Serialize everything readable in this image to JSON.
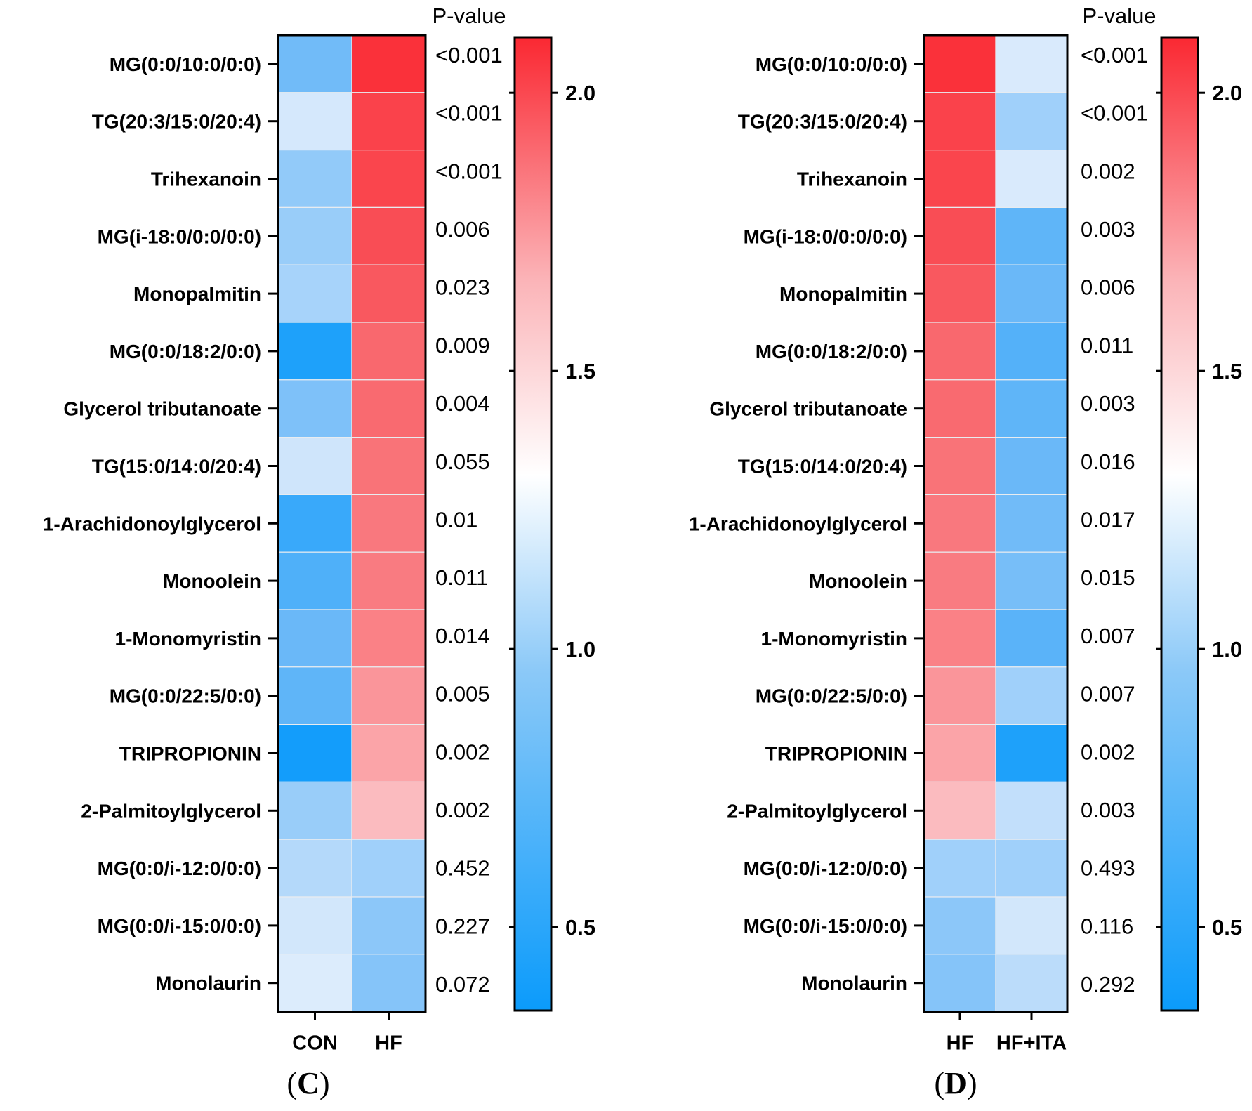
{
  "chart_data": [
    {
      "type": "heatmap",
      "panel_label": "C",
      "columns": [
        "CON",
        "HF"
      ],
      "rows": [
        "MG(0:0/10:0/0:0)",
        "TG(20:3/15:0/20:4)",
        "Trihexanoin",
        "MG(i-18:0/0:0/0:0)",
        "Monopalmitin",
        "MG(0:0/18:2/0:0)",
        "Glycerol tributanoate",
        "TG(15:0/14:0/20:4)",
        "1-Arachidonoylglycerol",
        "Monoolein",
        "1-Monomyristin",
        "MG(0:0/22:5/0:0)",
        "TRIPROPIONIN",
        "2-Palmitoylglycerol",
        "MG(0:0/i-12:0/0:0)",
        "MG(0:0/i-15:0/0:0)",
        "Monolaurin"
      ],
      "values": [
        [
          0.72,
          2.06
        ],
        [
          1.04,
          1.98
        ],
        [
          0.82,
          1.97
        ],
        [
          0.84,
          1.93
        ],
        [
          0.88,
          1.88
        ],
        [
          0.42,
          1.81
        ],
        [
          0.76,
          1.8
        ],
        [
          1.0,
          1.77
        ],
        [
          0.52,
          1.75
        ],
        [
          0.6,
          1.74
        ],
        [
          0.7,
          1.72
        ],
        [
          0.66,
          1.65
        ],
        [
          0.38,
          1.6
        ],
        [
          0.84,
          1.52
        ],
        [
          0.92,
          0.86
        ],
        [
          1.02,
          0.8
        ],
        [
          1.08,
          0.78
        ]
      ],
      "p_value_title": "P-value",
      "p_values": [
        "<0.001",
        "<0.001",
        "<0.001",
        "0.006",
        "0.023",
        "0.009",
        "0.004",
        "0.055",
        "0.01",
        "0.011",
        "0.014",
        "0.005",
        "0.002",
        "0.002",
        "0.452",
        "0.227",
        "0.072"
      ],
      "colorbar": {
        "min": 0.35,
        "max": 2.1,
        "ticks": [
          0.5,
          1.0,
          1.5,
          2.0
        ],
        "tick_labels": [
          "0.5",
          "1.0",
          "1.5",
          "2.0"
        ]
      }
    },
    {
      "type": "heatmap",
      "panel_label": "D",
      "columns": [
        "HF",
        "HF+ITA"
      ],
      "rows": [
        "MG(0:0/10:0/0:0)",
        "TG(20:3/15:0/20:4)",
        "Trihexanoin",
        "MG(i-18:0/0:0/0:0)",
        "Monopalmitin",
        "MG(0:0/18:2/0:0)",
        "Glycerol tributanoate",
        "TG(15:0/14:0/20:4)",
        "1-Arachidonoylglycerol",
        "Monoolein",
        "1-Monomyristin",
        "MG(0:0/22:5/0:0)",
        "TRIPROPIONIN",
        "2-Palmitoylglycerol",
        "MG(0:0/i-12:0/0:0)",
        "MG(0:0/i-15:0/0:0)",
        "Monolaurin"
      ],
      "values": [
        [
          2.06,
          1.06
        ],
        [
          1.98,
          0.86
        ],
        [
          1.97,
          1.06
        ],
        [
          1.93,
          0.66
        ],
        [
          1.88,
          0.7
        ],
        [
          1.81,
          0.62
        ],
        [
          1.8,
          0.66
        ],
        [
          1.77,
          0.7
        ],
        [
          1.75,
          0.72
        ],
        [
          1.74,
          0.74
        ],
        [
          1.72,
          0.64
        ],
        [
          1.65,
          0.86
        ],
        [
          1.6,
          0.42
        ],
        [
          1.52,
          0.96
        ],
        [
          0.86,
          0.86
        ],
        [
          0.8,
          1.02
        ],
        [
          0.78,
          0.94
        ]
      ],
      "p_value_title": "P-value",
      "p_values": [
        "<0.001",
        "<0.001",
        "0.002",
        "0.003",
        "0.006",
        "0.011",
        "0.003",
        "0.016",
        "0.017",
        "0.015",
        "0.007",
        "0.007",
        "0.002",
        "0.003",
        "0.493",
        "0.116",
        "0.292"
      ],
      "colorbar": {
        "min": 0.35,
        "max": 2.1,
        "ticks": [
          0.5,
          1.0,
          1.5,
          2.0
        ],
        "tick_labels": [
          "0.5",
          "1.0",
          "1.5",
          "2.0"
        ]
      }
    }
  ],
  "colors": {
    "low": "#0b9bfb",
    "mid": "#ffffff",
    "high": "#fa2832",
    "grid": "#e8ecf0",
    "frame": "#000000"
  }
}
